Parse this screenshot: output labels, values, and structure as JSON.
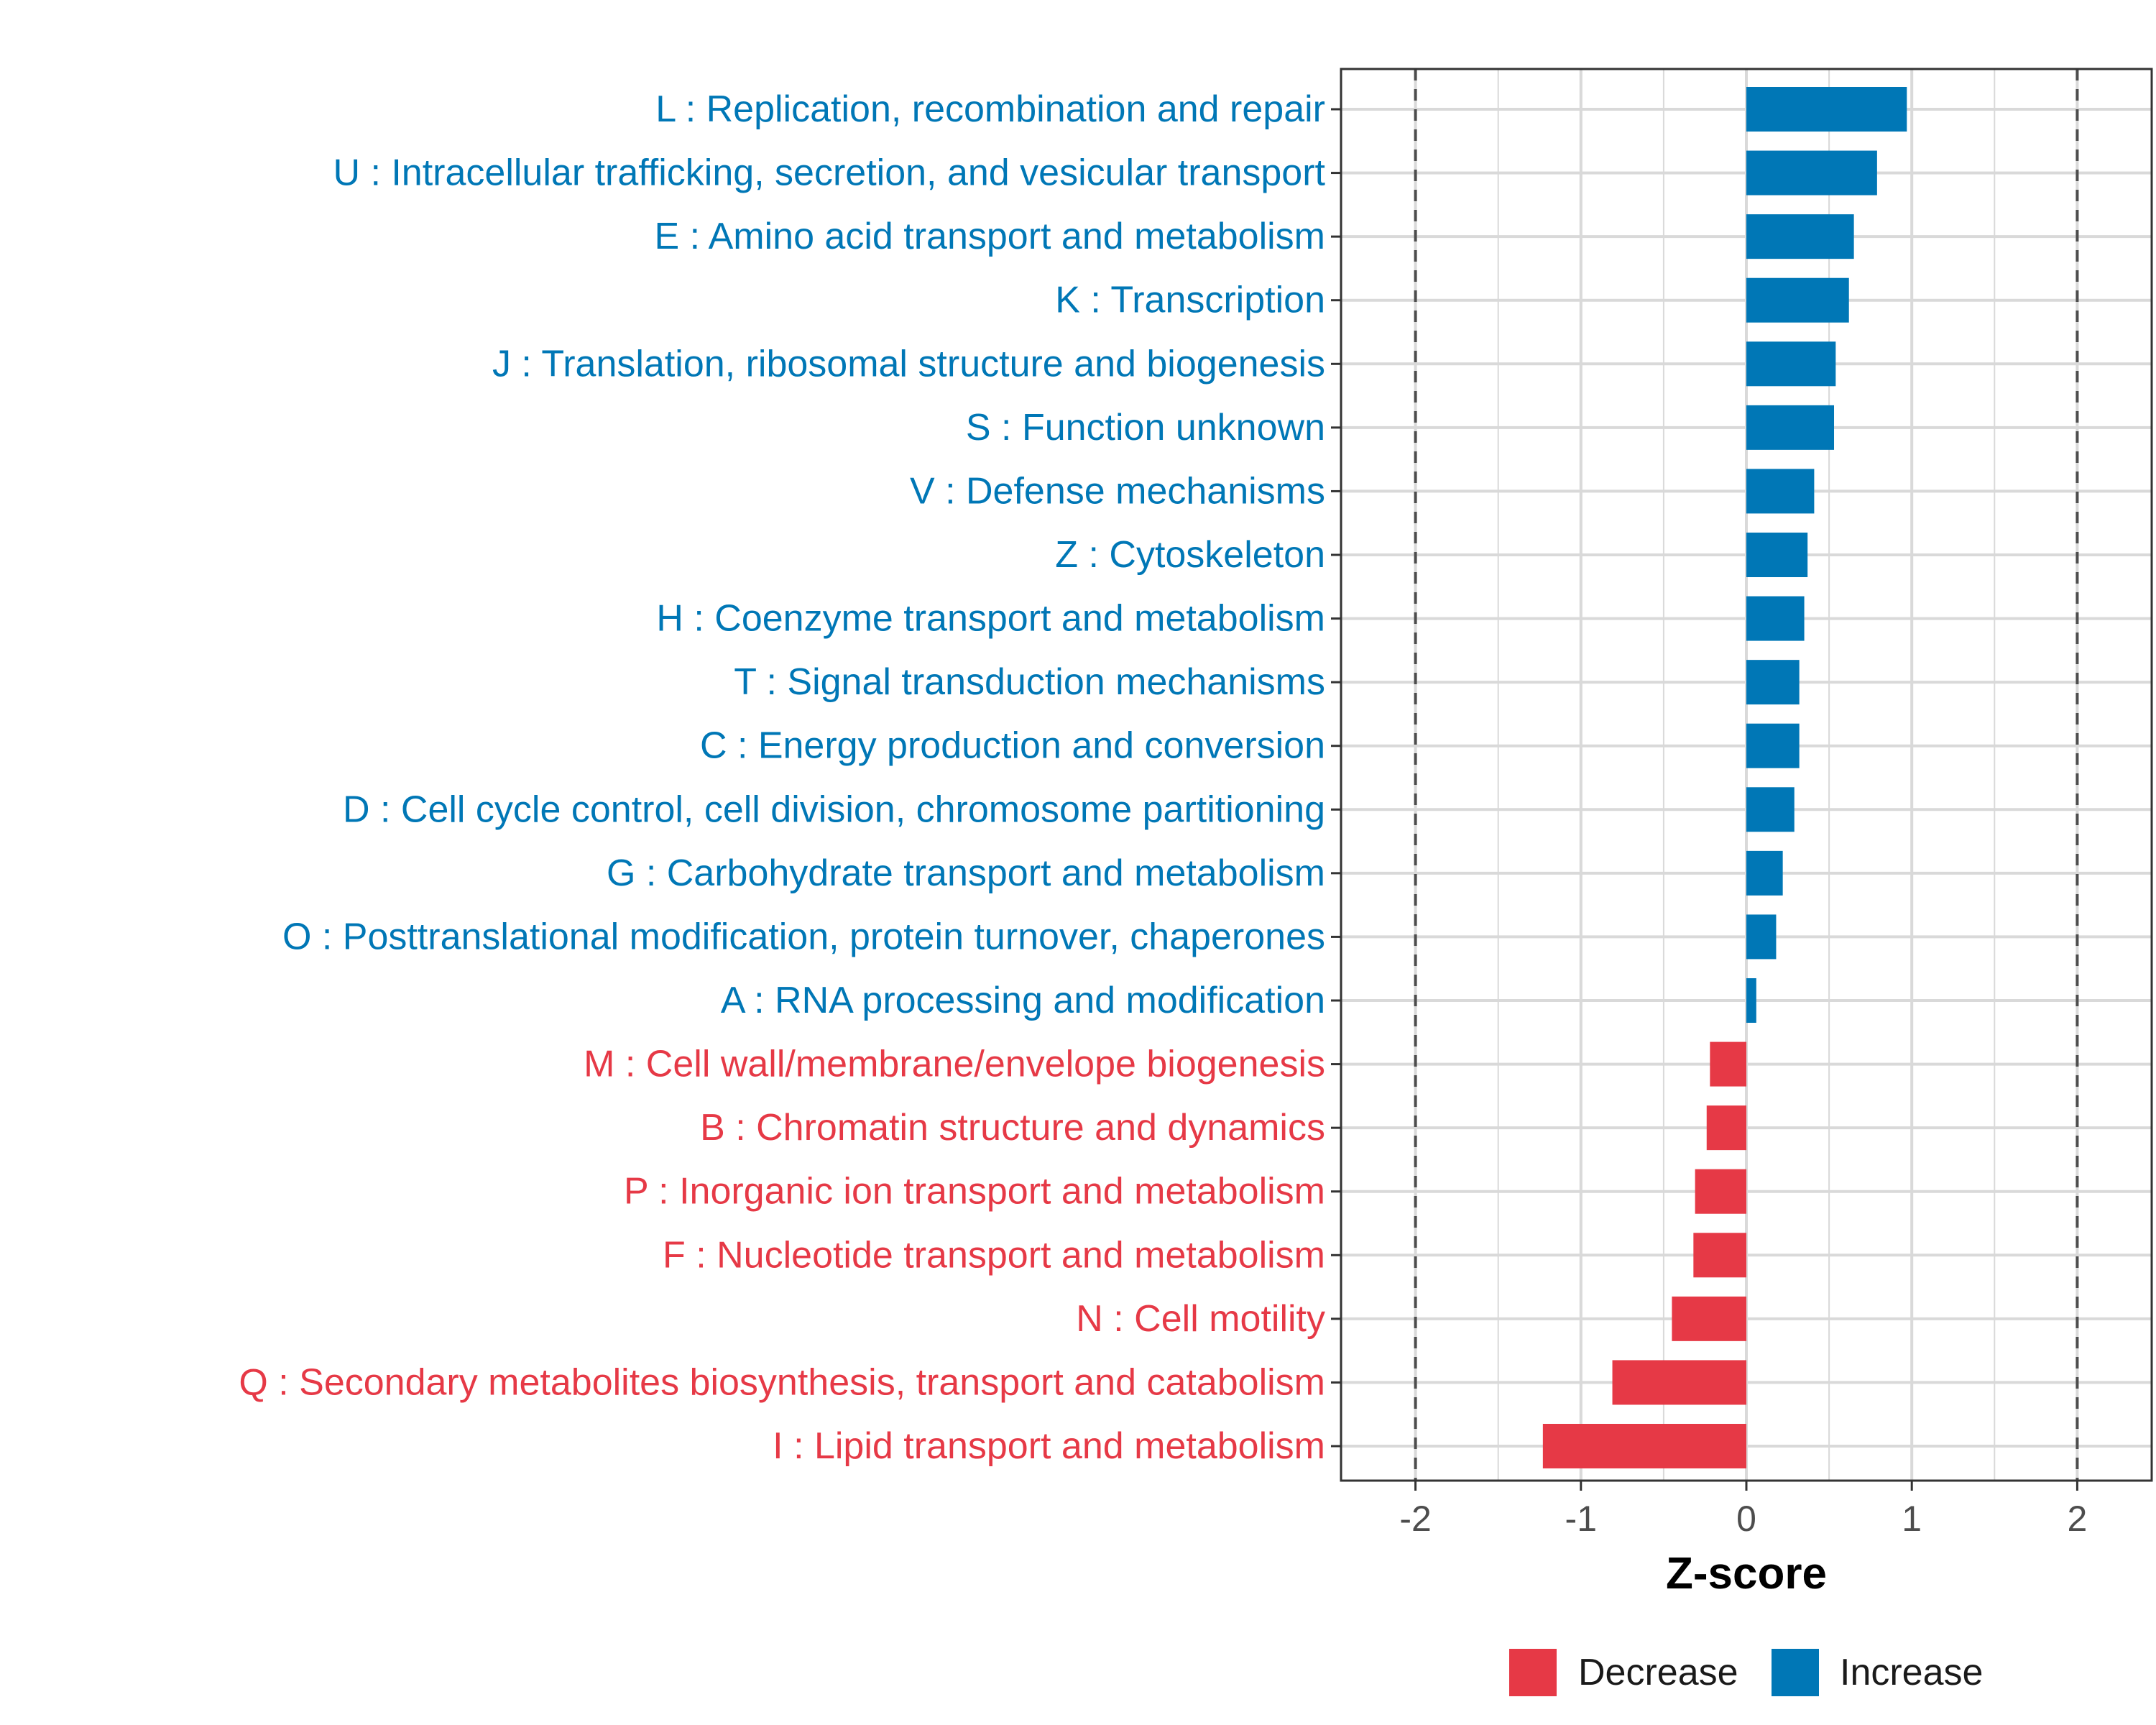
{
  "chart_data": {
    "type": "bar",
    "orientation": "horizontal",
    "xlabel": "Z-score",
    "ylabel": "",
    "xlim": [
      -2.45,
      2.45
    ],
    "xticks": [
      -2,
      -1,
      0,
      1,
      2
    ],
    "xtick_labels": [
      "-2",
      "-1",
      "0",
      "1",
      "2"
    ],
    "reference_lines": [
      -2,
      2
    ],
    "grid": true,
    "legend_position": "bottom",
    "colors": {
      "Decrease": "#e63946",
      "Increase": "#0077b6"
    },
    "categories": [
      "L : Replication, recombination and repair",
      "U : Intracellular trafficking, secretion, and vesicular transport",
      "E : Amino acid transport and metabolism",
      "K : Transcription",
      "J : Translation, ribosomal structure and biogenesis",
      "S : Function unknown",
      "V : Defense mechanisms",
      "Z : Cytoskeleton",
      "H : Coenzyme transport and metabolism",
      "T : Signal transduction mechanisms",
      "C : Energy production and conversion",
      "D : Cell cycle control, cell division, chromosome partitioning",
      "G : Carbohydrate transport and metabolism",
      "O : Posttranslational modification, protein turnover, chaperones",
      "A : RNA processing and modification",
      "M : Cell wall/membrane/envelope biogenesis",
      "B : Chromatin structure and dynamics",
      "P : Inorganic ion transport and metabolism",
      "F : Nucleotide transport and metabolism",
      "N : Cell motility",
      "Q : Secondary metabolites biosynthesis, transport and catabolism",
      "I : Lipid transport and metabolism"
    ],
    "values": [
      0.97,
      0.79,
      0.65,
      0.62,
      0.54,
      0.53,
      0.41,
      0.37,
      0.35,
      0.32,
      0.32,
      0.29,
      0.22,
      0.18,
      0.06,
      -0.22,
      -0.24,
      -0.31,
      -0.32,
      -0.45,
      -0.81,
      -1.23
    ],
    "groups": [
      "Increase",
      "Increase",
      "Increase",
      "Increase",
      "Increase",
      "Increase",
      "Increase",
      "Increase",
      "Increase",
      "Increase",
      "Increase",
      "Increase",
      "Increase",
      "Increase",
      "Increase",
      "Decrease",
      "Decrease",
      "Decrease",
      "Decrease",
      "Decrease",
      "Decrease",
      "Decrease"
    ],
    "legend": [
      "Decrease",
      "Increase"
    ]
  }
}
